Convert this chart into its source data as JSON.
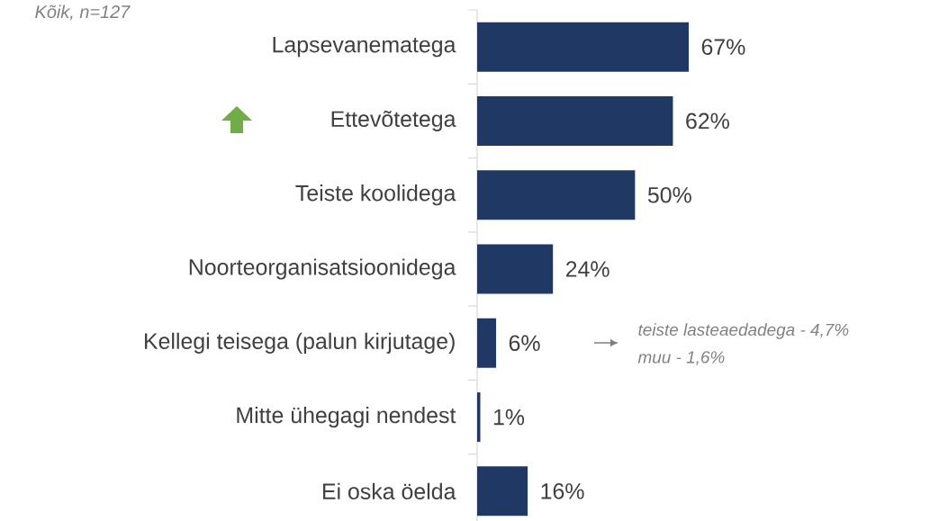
{
  "chart_data": {
    "type": "bar",
    "orientation": "horizontal",
    "subtitle": "Kõik, n=127",
    "categories": [
      "Lapsevanematega",
      "Ettevõtetega",
      "Teiste koolidega",
      "Noorteorganisatsioonidega",
      "Kellegi teisega (palun kirjutage)",
      "Mitte ühegagi nendest",
      "Ei oska öelda"
    ],
    "values": [
      67,
      62,
      50,
      24,
      6,
      1,
      16
    ],
    "value_labels": [
      "67%",
      "62%",
      "50%",
      "24%",
      "6%",
      "1%",
      "16%"
    ],
    "color": "#203864",
    "annotations": [
      "teiste lasteaedadega - 4,7%",
      "muu - 1,6%"
    ]
  }
}
